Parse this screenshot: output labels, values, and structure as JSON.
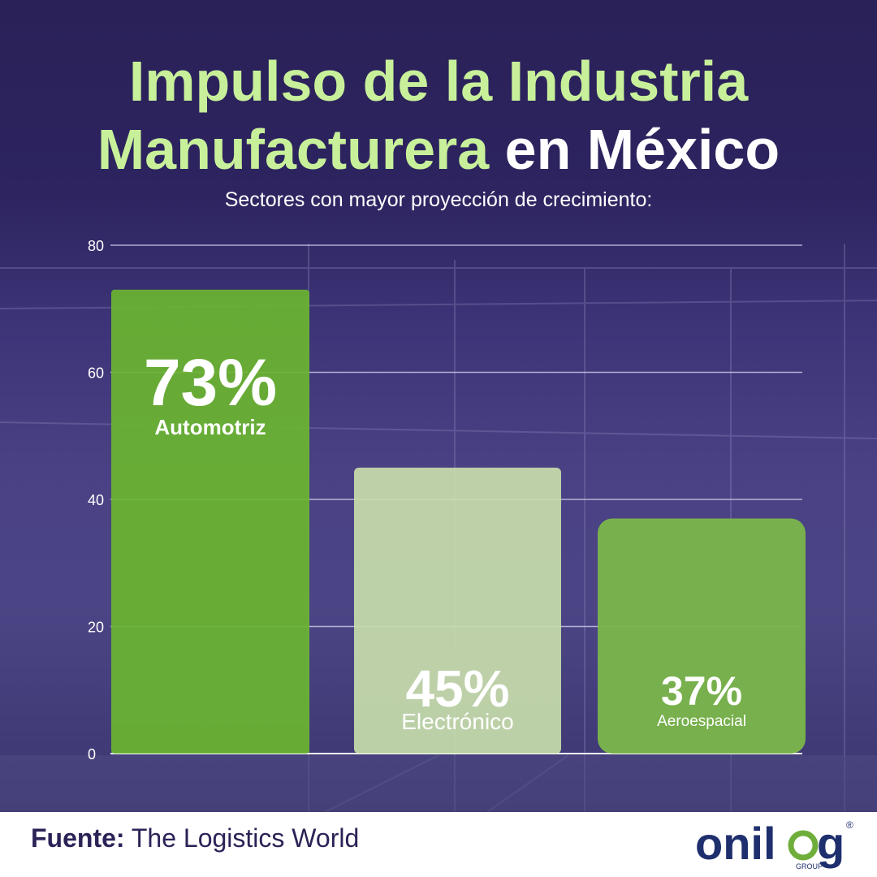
{
  "title": {
    "line1": "Impulso de la Industria",
    "line2_green": "Manufacturera",
    "line2_white": "en México"
  },
  "subtitle": "Sectores con mayor proyección de crecimiento:",
  "source": {
    "label": "Fuente:",
    "text": "The Logistics World"
  },
  "logo": {
    "text_a": "onil",
    "text_b": "g",
    "registered": "®",
    "sub": "GROUP"
  },
  "colors": {
    "background": "#2d2460",
    "title_green": "#c8f09a",
    "bar_green": "#6ab530",
    "bar_light": "#c6dcab",
    "bar_mid": "#7ab64a"
  },
  "chart_data": {
    "type": "bar",
    "categories": [
      "Automotriz",
      "Electrónico",
      "Aeroespacial"
    ],
    "values": [
      73,
      45,
      37
    ],
    "value_labels": [
      "73%",
      "45%",
      "37%"
    ],
    "yticks": [
      0,
      20,
      40,
      60,
      80
    ],
    "ylim": [
      0,
      80
    ],
    "grid": true,
    "title": "",
    "xlabel": "",
    "ylabel": ""
  }
}
